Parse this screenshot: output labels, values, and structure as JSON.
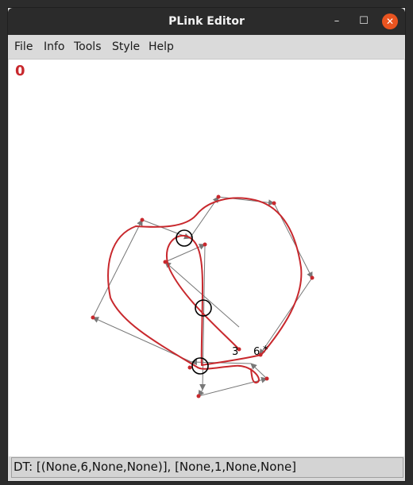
{
  "window": {
    "title": "PLink Editor",
    "controls": {
      "minimize": "–",
      "maximize": "☐",
      "close": "✕"
    }
  },
  "menu": {
    "items": [
      "File",
      "Info",
      "Tools",
      "Style",
      "Help"
    ]
  },
  "canvas": {
    "counter": "0",
    "labels": {
      "crossing_a": "3",
      "crossing_b": "6",
      "marker": "*"
    },
    "colors": {
      "curve": "#c8282d",
      "polygon": "#777777",
      "vertex": "#c8282d",
      "crossing_circle": "#000000"
    }
  },
  "status": {
    "dt_code": "DT: [(None,6,None,None)], [None,1,None,None]"
  }
}
